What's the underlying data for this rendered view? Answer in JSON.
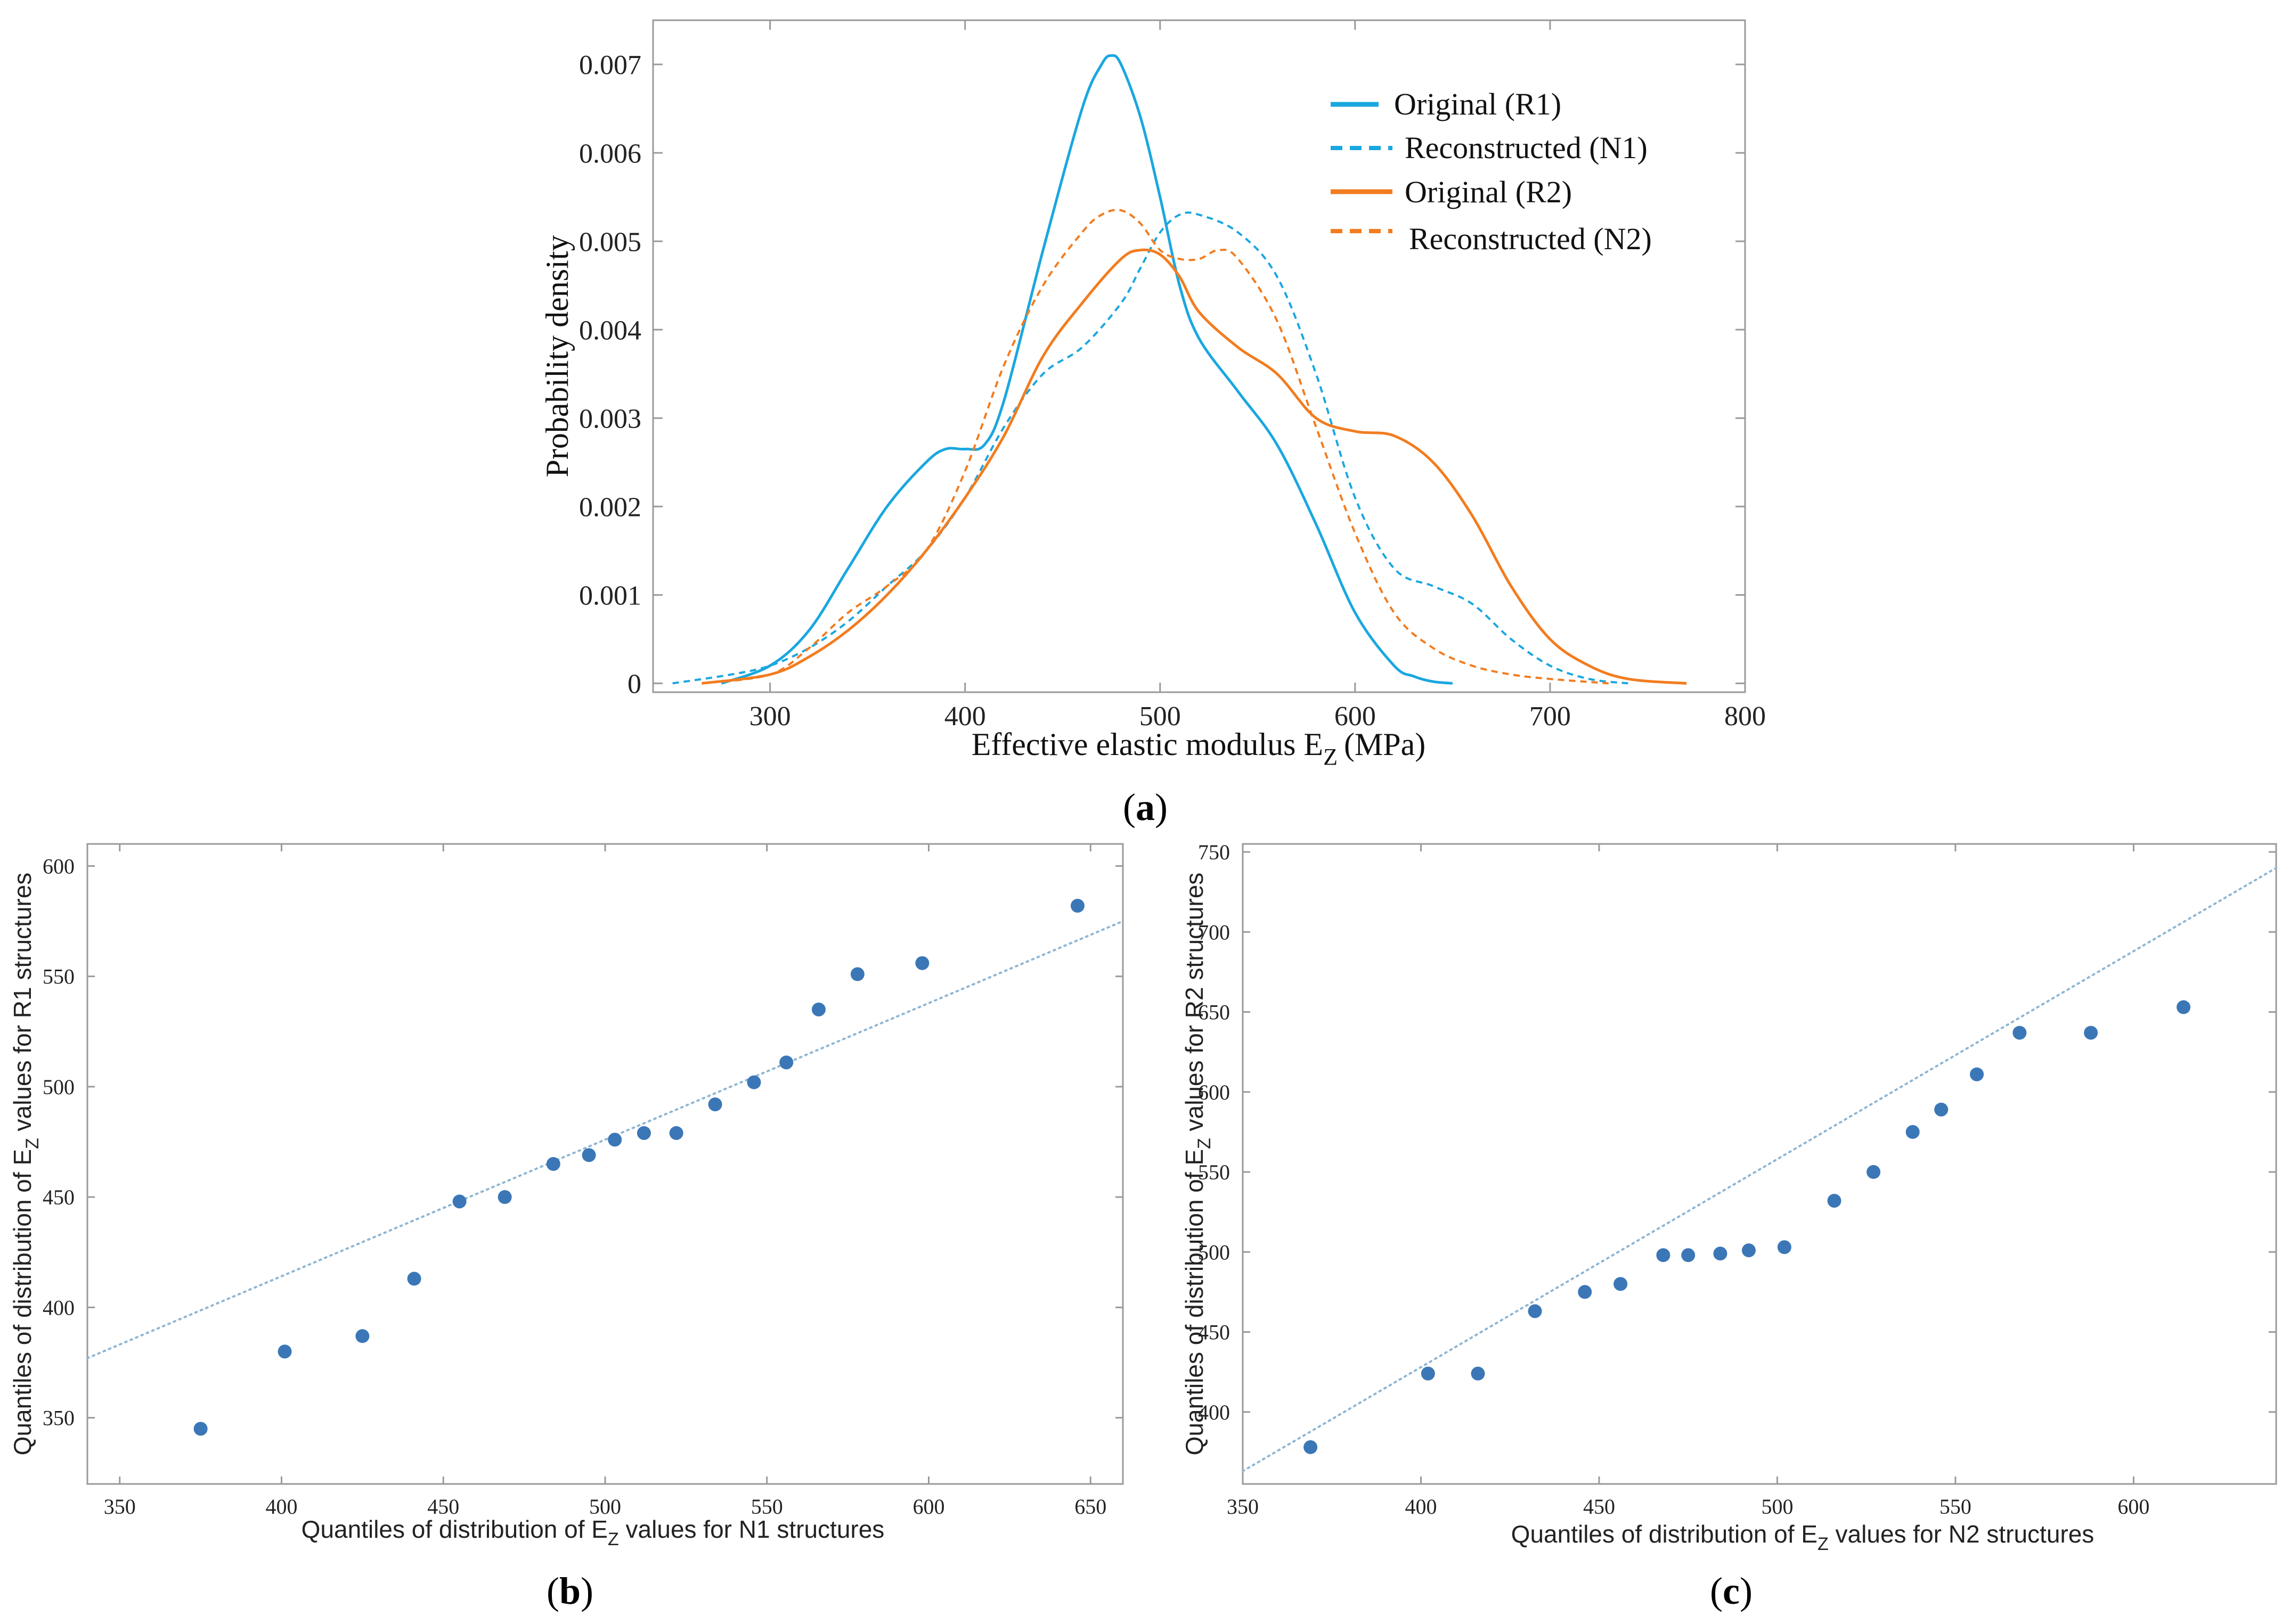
{
  "panel_labels": {
    "a": "(a)",
    "b": "(b)",
    "c": "(c)"
  },
  "colors": {
    "blue": "#1aa7df",
    "orange": "#f27c1f",
    "points": "#3b77b6",
    "fit": "#8fb6d3",
    "frame": "#9a9a9a"
  },
  "chart_data": [
    {
      "id": "a",
      "type": "line",
      "xlabel_main": "Effective elastic modulus E",
      "xlabel_sub": "Z",
      "xlabel_unit": "(MPa)",
      "ylabel": "Probability density",
      "xlim": [
        240,
        800
      ],
      "ylim": [
        -0.0001,
        0.0075
      ],
      "xticks": [
        300,
        400,
        500,
        600,
        700,
        800
      ],
      "yticks": [
        0,
        0.001,
        0.002,
        0.003,
        0.004,
        0.005,
        0.006,
        0.007
      ],
      "ytick_labels": [
        "0",
        "0.001",
        "0.002",
        "0.003",
        "0.004",
        "0.005",
        "0.006",
        "0.007"
      ],
      "legend_position": "top-right",
      "series": [
        {
          "name": "Original (R1)",
          "color": "#1aa7df",
          "dash": "solid",
          "x": [
            275,
            300,
            320,
            340,
            360,
            380,
            390,
            400,
            410,
            420,
            440,
            460,
            470,
            475,
            480,
            490,
            500,
            510,
            520,
            540,
            560,
            580,
            600,
            620,
            630,
            640,
            650
          ],
          "y": [
            0.0,
            0.0002,
            0.0006,
            0.0013,
            0.002,
            0.0025,
            0.00265,
            0.00265,
            0.0027,
            0.0032,
            0.0049,
            0.0065,
            0.007,
            0.0071,
            0.007,
            0.0064,
            0.0055,
            0.0045,
            0.0039,
            0.0033,
            0.0027,
            0.0018,
            0.0008,
            0.0002,
            8e-05,
            2e-05,
            0.0
          ]
        },
        {
          "name": "Reconstructed (N1)",
          "color": "#1aa7df",
          "dash": "dashed",
          "x": [
            250,
            280,
            300,
            320,
            340,
            360,
            380,
            400,
            420,
            440,
            460,
            480,
            490,
            500,
            510,
            520,
            540,
            560,
            580,
            600,
            620,
            640,
            660,
            680,
            700,
            720,
            740
          ],
          "y": [
            0.0,
            0.0001,
            0.0002,
            0.0004,
            0.0007,
            0.0011,
            0.0015,
            0.0021,
            0.0029,
            0.0035,
            0.0038,
            0.0043,
            0.0047,
            0.0051,
            0.0053,
            0.0053,
            0.0051,
            0.0046,
            0.0035,
            0.0021,
            0.0013,
            0.0011,
            0.0009,
            0.0005,
            0.0002,
            5e-05,
            0.0
          ]
        },
        {
          "name": "Original (R2)",
          "color": "#f27c1f",
          "dash": "solid",
          "x": [
            265,
            300,
            320,
            340,
            360,
            380,
            400,
            420,
            440,
            460,
            480,
            490,
            500,
            510,
            520,
            540,
            560,
            580,
            600,
            620,
            640,
            660,
            680,
            700,
            720,
            740,
            770
          ],
          "y": [
            0.0,
            0.0001,
            0.0003,
            0.0006,
            0.001,
            0.0015,
            0.0021,
            0.0028,
            0.0037,
            0.0043,
            0.0048,
            0.0049,
            0.00485,
            0.0046,
            0.0042,
            0.0038,
            0.0035,
            0.003,
            0.00285,
            0.0028,
            0.0025,
            0.0019,
            0.0011,
            0.0005,
            0.0002,
            5e-05,
            0.0
          ]
        },
        {
          "name": "Reconstructed (N2)",
          "color": "#f27c1f",
          "dash": "dashed",
          "x": [
            265,
            300,
            320,
            340,
            360,
            380,
            400,
            420,
            440,
            460,
            470,
            480,
            490,
            500,
            510,
            520,
            530,
            540,
            560,
            580,
            600,
            620,
            640,
            660,
            680,
            700,
            730
          ],
          "y": [
            0.0,
            0.0001,
            0.0004,
            0.0008,
            0.0011,
            0.0015,
            0.0024,
            0.0036,
            0.0045,
            0.0051,
            0.0053,
            0.00535,
            0.0052,
            0.0049,
            0.0048,
            0.0048,
            0.0049,
            0.0048,
            0.0041,
            0.0029,
            0.0017,
            0.0008,
            0.0004,
            0.0002,
            0.0001,
            5e-05,
            0.0
          ]
        }
      ]
    },
    {
      "id": "b",
      "type": "scatter",
      "xlabel_main": "Quantiles of distribution of E",
      "xlabel_sub": "Z",
      "xlabel_rest": " values for N1 structures",
      "ylabel_main": "Quantiles of distribution of E",
      "ylabel_sub": "Z",
      "ylabel_rest": " values for R1 structures",
      "xlim": [
        340,
        660
      ],
      "ylim": [
        320,
        610
      ],
      "xticks": [
        350,
        400,
        450,
        500,
        550,
        600,
        650
      ],
      "yticks": [
        350,
        400,
        450,
        500,
        550,
        600
      ],
      "fit_line": {
        "x": [
          340,
          660
        ],
        "y": [
          377,
          575
        ]
      },
      "x": [
        375,
        401,
        425,
        441,
        455,
        469,
        484,
        495,
        503,
        512,
        522,
        534,
        546,
        556,
        566,
        578,
        598,
        646
      ],
      "y": [
        345,
        380,
        387,
        413,
        448,
        450,
        465,
        469,
        476,
        479,
        479,
        492,
        502,
        511,
        535,
        551,
        556,
        582
      ]
    },
    {
      "id": "c",
      "type": "scatter",
      "xlabel_main": "Quantiles of distribution of E",
      "xlabel_sub": "Z",
      "xlabel_rest": " values for N2 structures",
      "ylabel_main": "Quantiles of distribution of E",
      "ylabel_sub": "Z",
      "ylabel_rest": " values for R2 structures",
      "xlim": [
        350,
        640
      ],
      "ylim": [
        355,
        755
      ],
      "xticks": [
        350,
        400,
        450,
        500,
        550,
        600
      ],
      "yticks": [
        400,
        450,
        500,
        550,
        600,
        650,
        700,
        750
      ],
      "fit_line": {
        "x": [
          350,
          640
        ],
        "y": [
          363,
          740
        ]
      },
      "x": [
        369,
        402,
        416,
        432,
        446,
        456,
        468,
        475,
        484,
        492,
        502,
        516,
        527,
        538,
        546,
        556,
        568,
        588,
        614
      ],
      "y": [
        378,
        424,
        424,
        463,
        475,
        480,
        498,
        498,
        499,
        501,
        503,
        532,
        550,
        575,
        589,
        611,
        637,
        637,
        653
      ]
    }
  ]
}
